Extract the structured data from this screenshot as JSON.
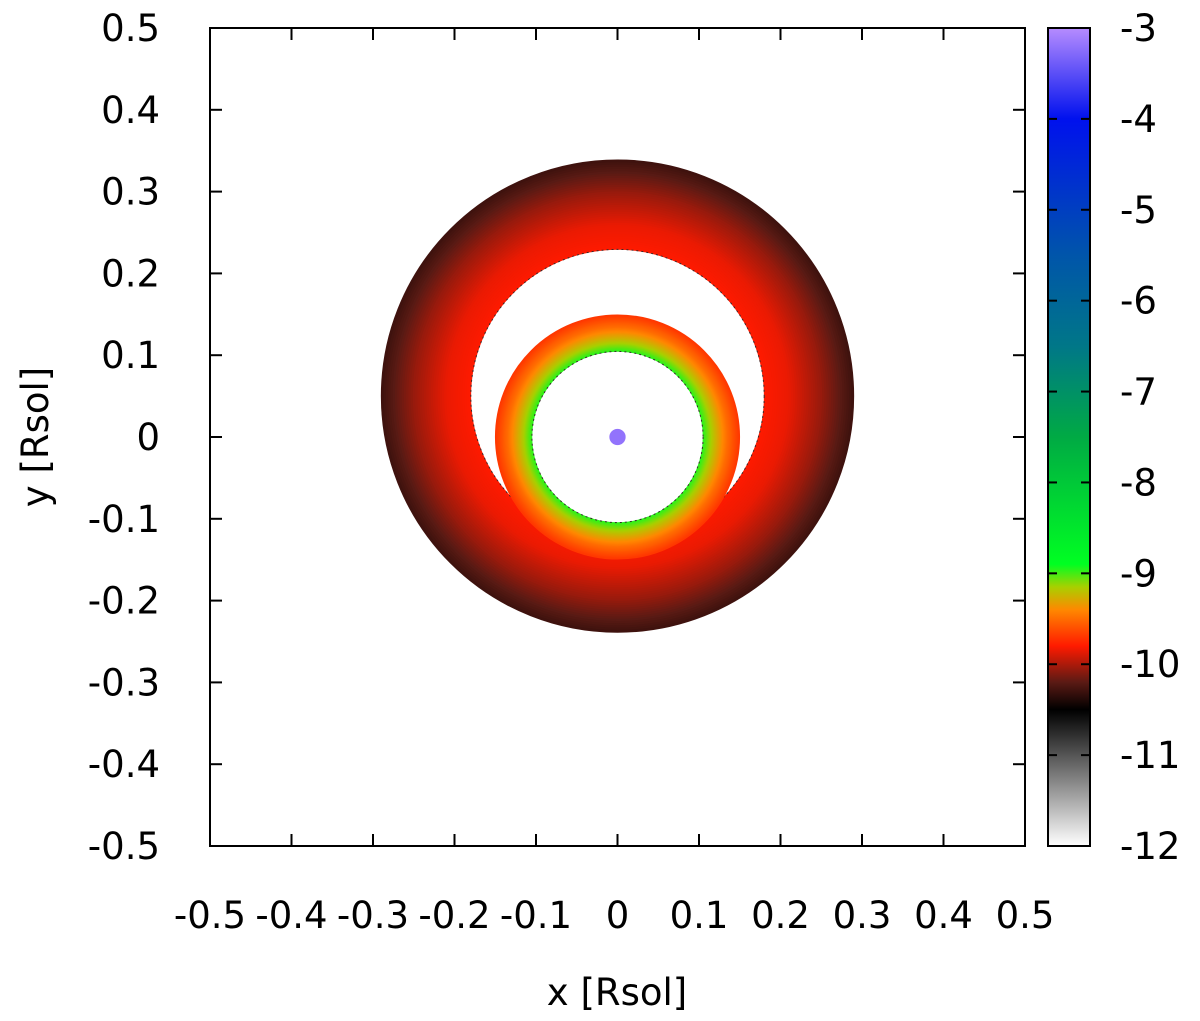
{
  "chart_data": {
    "type": "heatmap",
    "title": "",
    "xlabel": "x [Rsol]",
    "ylabel": "y [Rsol]",
    "xlim": [
      -0.5,
      0.5
    ],
    "ylim": [
      -0.5,
      0.5
    ],
    "x_ticks": [
      -0.5,
      -0.4,
      -0.3,
      -0.2,
      -0.1,
      0,
      0.1,
      0.2,
      0.3,
      0.4,
      0.5
    ],
    "y_ticks": [
      -0.5,
      -0.4,
      -0.3,
      -0.2,
      -0.1,
      0,
      0.1,
      0.2,
      0.3,
      0.4,
      0.5
    ],
    "x_tick_labels": [
      "-0.5",
      "-0.4",
      "-0.3",
      "-0.2",
      "-0.1",
      "0",
      "0.1",
      "0.2",
      "0.3",
      "0.4",
      "0.5"
    ],
    "y_tick_labels": [
      "-0.5",
      "-0.4",
      "-0.3",
      "-0.2",
      "-0.1",
      "0",
      "0.1",
      "0.2",
      "0.3",
      "0.4",
      "0.5"
    ],
    "grid": false,
    "colorbar": {
      "range": [
        -12,
        -3
      ],
      "ticks": [
        -12,
        -11,
        -10,
        -9,
        -8,
        -7,
        -6,
        -5,
        -4,
        -3
      ],
      "tick_labels": [
        "-12",
        "-11",
        "-10",
        "-9",
        "-8",
        "-7",
        "-6",
        "-5",
        "-4",
        "-3"
      ],
      "placement": "right",
      "stops": [
        {
          "value": -12,
          "color": "#ffffff"
        },
        {
          "value": -10.5,
          "color": "#000000"
        },
        {
          "value": -10.2,
          "color": "#5a1a14"
        },
        {
          "value": -9.8,
          "color": "#ff1a00"
        },
        {
          "value": -9.4,
          "color": "#ff8800"
        },
        {
          "value": -9.15,
          "color": "#a8d000"
        },
        {
          "value": -8.9,
          "color": "#00ff22"
        },
        {
          "value": -7.5,
          "color": "#00aa44"
        },
        {
          "value": -6.5,
          "color": "#007788"
        },
        {
          "value": -5.5,
          "color": "#0055aa"
        },
        {
          "value": -4,
          "color": "#0011ee"
        },
        {
          "value": -3,
          "color": "#b68cff"
        }
      ]
    },
    "rings": [
      {
        "name": "outer ring",
        "center": [
          0,
          0.05
        ],
        "inner_radius": 0.18,
        "outer_radius": 0.29,
        "profile": [
          {
            "r": 0.18,
            "value": -9.8
          },
          {
            "r": 0.21,
            "value": -9.85
          },
          {
            "r": 0.25,
            "value": -10.05
          },
          {
            "r": 0.29,
            "value": -10.3
          }
        ]
      },
      {
        "name": "inner ring",
        "center": [
          0,
          0
        ],
        "inner_radius": 0.105,
        "outer_radius": 0.15,
        "profile": [
          {
            "r": 0.105,
            "value": -8.95
          },
          {
            "r": 0.118,
            "value": -9.2
          },
          {
            "r": 0.135,
            "value": -9.5
          },
          {
            "r": 0.15,
            "value": -9.7
          }
        ]
      },
      {
        "name": "central dot",
        "center": [
          0,
          0
        ],
        "inner_radius": 0,
        "outer_radius": 0.01,
        "profile": [
          {
            "r": 0,
            "value": -3.2
          },
          {
            "r": 0.01,
            "value": -3.2
          }
        ]
      }
    ]
  }
}
